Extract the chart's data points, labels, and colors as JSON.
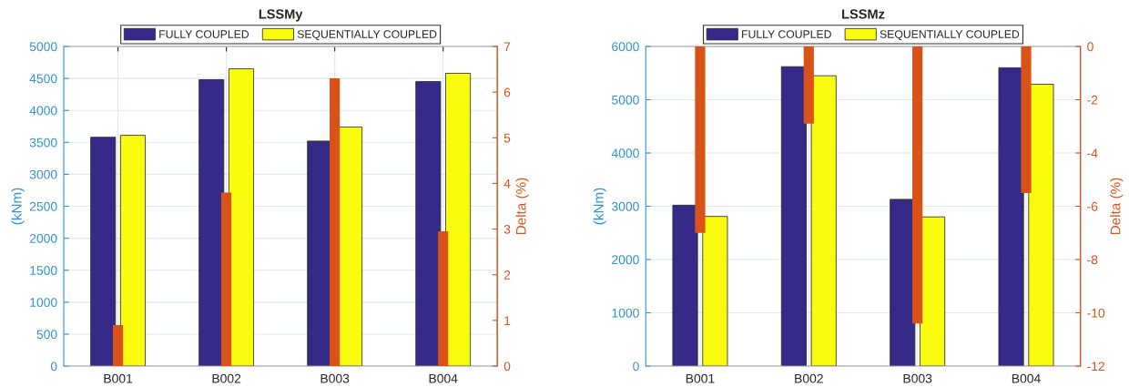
{
  "chart_data": [
    {
      "type": "bar",
      "title": "LSSMy",
      "ylabel": "(kNm)",
      "y2label": "Delta (%)",
      "categories": [
        "B001",
        "B002",
        "B003",
        "B004"
      ],
      "series": [
        {
          "name": "FULLY COUPLED",
          "color": "#352a87",
          "values": [
            3580,
            4480,
            3520,
            4450
          ]
        },
        {
          "name": "SEQUENTIALLY COUPLED",
          "color": "#f9fb0e",
          "values": [
            3610,
            4650,
            3740,
            4580
          ]
        },
        {
          "color": "#d95319",
          "values": [
            0.9,
            3.8,
            6.3,
            2.95
          ],
          "axis": "y2"
        }
      ],
      "ylim": [
        0,
        5000
      ],
      "yticks": [
        0,
        500,
        1000,
        1500,
        2000,
        2500,
        3000,
        3500,
        4000,
        4500,
        5000
      ],
      "y2lim": [
        0,
        7
      ],
      "y2ticks": [
        0,
        1,
        2,
        3,
        4,
        5,
        6,
        7
      ],
      "grid": true,
      "legend": "top"
    },
    {
      "type": "bar",
      "title": "LSSMz",
      "ylabel": "(kNm)",
      "y2label": "Delta (%)",
      "categories": [
        "B001",
        "B002",
        "B003",
        "B004"
      ],
      "series": [
        {
          "name": "FULLY COUPLED",
          "color": "#352a87",
          "values": [
            3020,
            5620,
            3130,
            5600
          ]
        },
        {
          "name": "SEQUENTIALLY COUPLED",
          "color": "#f9fb0e",
          "values": [
            2810,
            5450,
            2800,
            5290
          ]
        },
        {
          "color": "#d95319",
          "values": [
            -7.0,
            -2.9,
            -10.4,
            -5.5
          ],
          "axis": "y2"
        }
      ],
      "ylim": [
        0,
        6000
      ],
      "yticks": [
        0,
        1000,
        2000,
        3000,
        4000,
        5000,
        6000
      ],
      "y2lim": [
        -12,
        0
      ],
      "y2ticks": [
        -12,
        -10,
        -8,
        -6,
        -4,
        -2,
        0
      ],
      "grid": true,
      "legend": "top"
    }
  ]
}
